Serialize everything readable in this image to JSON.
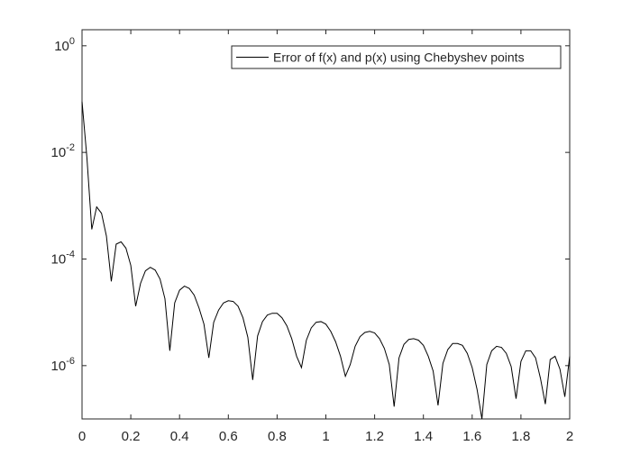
{
  "chart_data": {
    "type": "line",
    "log_scale_y": true,
    "legend_location": "northeast",
    "xlim": [
      0,
      2
    ],
    "ylim": [
      1e-07,
      2
    ],
    "xticks": [
      0,
      0.2,
      0.4,
      0.6,
      0.8,
      1,
      1.2,
      1.4,
      1.6,
      1.8,
      2
    ],
    "yticks": [
      {
        "value": 1e-06,
        "label": "10^-6"
      },
      {
        "value": 0.0001,
        "label": "10^-4"
      },
      {
        "value": 0.01,
        "label": "10^-2"
      },
      {
        "value": 1,
        "label": "10^0"
      }
    ],
    "x": [
      0,
      0.02,
      0.04,
      0.06,
      0.08,
      0.1,
      0.12,
      0.14,
      0.16,
      0.18,
      0.2,
      0.22,
      0.24,
      0.26,
      0.28,
      0.3,
      0.32,
      0.34,
      0.36,
      0.38,
      0.4,
      0.42,
      0.44,
      0.46,
      0.48,
      0.5,
      0.52,
      0.54,
      0.56,
      0.58,
      0.6,
      0.62,
      0.64,
      0.66,
      0.68,
      0.7,
      0.72,
      0.74,
      0.76,
      0.78,
      0.8,
      0.82,
      0.84,
      0.86,
      0.88,
      0.9,
      0.92,
      0.94,
      0.96,
      0.98,
      1,
      1.02,
      1.04,
      1.06,
      1.08,
      1.1,
      1.12,
      1.14,
      1.16,
      1.18,
      1.2,
      1.22,
      1.24,
      1.26,
      1.28,
      1.3,
      1.32,
      1.34,
      1.36,
      1.38,
      1.4,
      1.42,
      1.44,
      1.46,
      1.48,
      1.5,
      1.52,
      1.54,
      1.56,
      1.58,
      1.6,
      1.62,
      1.64,
      1.66,
      1.68,
      1.7,
      1.72,
      1.74,
      1.76,
      1.78,
      1.8,
      1.82,
      1.84,
      1.86,
      1.88,
      1.9,
      1.92,
      1.94,
      1.96,
      1.98,
      2
    ],
    "series": [
      {
        "name": "Error of f(x) and p(x) using Chebyshev points",
        "color": "#000000",
        "values": [
          0.09,
          0.008,
          0.00036,
          0.00095,
          0.00072,
          0.00027,
          3.8e-05,
          0.00019,
          0.00021,
          0.00016,
          7.6e-05,
          1.3e-05,
          3.5e-05,
          6e-05,
          7e-05,
          6.2e-05,
          4.2e-05,
          1.8e-05,
          1.9e-06,
          1.5e-05,
          2.6e-05,
          3.1e-05,
          2.8e-05,
          2.1e-05,
          1.2e-05,
          6e-06,
          1.4e-06,
          6.5e-06,
          1.1e-05,
          1.5e-05,
          1.65e-05,
          1.6e-05,
          1.3e-05,
          7.9e-06,
          3.4e-06,
          5.4e-07,
          3.6e-06,
          6.7e-06,
          8.9e-06,
          9.6e-06,
          9.6e-06,
          7.9e-06,
          5.6e-06,
          3.2e-06,
          1.5e-06,
          9.2e-07,
          3e-06,
          5.1e-06,
          6.5e-06,
          6.7e-06,
          6e-06,
          4.4e-06,
          2.8e-06,
          1.5e-06,
          6.3e-07,
          1.05e-06,
          2.3e-06,
          3.5e-06,
          4.2e-06,
          4.4e-06,
          4.1e-06,
          3.2e-06,
          2.1e-06,
          1.05e-06,
          1.7e-07,
          1.4e-06,
          2.5e-06,
          3.1e-06,
          3.2e-06,
          3e-06,
          2.4e-06,
          1.5e-06,
          7.9e-07,
          1.8e-07,
          1.1e-06,
          2e-06,
          2.6e-06,
          2.6e-06,
          2.4e-06,
          1.7e-06,
          9.2e-07,
          3.6e-07,
          1e-07,
          1.05e-06,
          1.9e-06,
          2.3e-06,
          2.2e-06,
          1.7e-06,
          9.6e-07,
          2.4e-07,
          1.2e-06,
          1.9e-06,
          1.9e-06,
          1.4e-06,
          5.8e-07,
          1.9e-07,
          1.3e-06,
          1.5e-06,
          8.6e-07,
          2.6e-07,
          1.5e-06
        ]
      }
    ]
  }
}
